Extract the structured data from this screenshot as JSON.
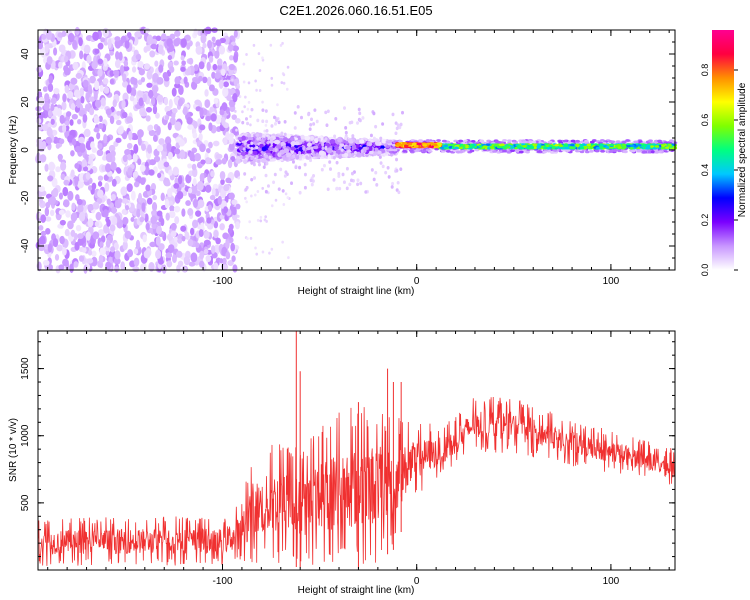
{
  "title": "C2E1.2026.060.16.51.E05",
  "chart_data": [
    {
      "type": "heatmap",
      "name": "spectrogram",
      "xlabel": "Height of straight line (km)",
      "ylabel": "Frequency (Hz)",
      "xlim": [
        -195,
        133
      ],
      "ylim": [
        -50,
        50
      ],
      "x_ticks": [
        {
          "value": -100,
          "label": "-100"
        },
        {
          "value": 0,
          "label": "0"
        },
        {
          "value": 100,
          "label": "100"
        }
      ],
      "y_ticks": [
        {
          "value": -40,
          "label": "-40"
        },
        {
          "value": -20,
          "label": "-20"
        },
        {
          "value": 0,
          "label": "0"
        },
        {
          "value": 20,
          "label": "20"
        },
        {
          "value": 40,
          "label": "40"
        }
      ],
      "colorbar": {
        "label": "Normalized spectral amplitude",
        "range": [
          0,
          0.96
        ],
        "ticks": [
          {
            "value": 0.0,
            "label": "0.0"
          },
          {
            "value": 0.2,
            "label": "0.2"
          },
          {
            "value": 0.4,
            "label": "0.4"
          },
          {
            "value": 0.6,
            "label": "0.6"
          },
          {
            "value": 0.8,
            "label": "0.8"
          }
        ],
        "colors": [
          "#ffffff",
          "#c896ff",
          "#7a00ff",
          "#0000ff",
          "#00c8ff",
          "#00ff80",
          "#80ff00",
          "#ffff00",
          "#ff9000",
          "#ff0040",
          "#ff0090"
        ]
      },
      "regions": [
        {
          "x": [
            -195,
            -92
          ],
          "freq_spread": 50,
          "amplitude": 0.06,
          "description": "broadband noise"
        },
        {
          "x": [
            -92,
            -10
          ],
          "freq_spread": 6,
          "amplitude": 0.3,
          "description": "onset"
        },
        {
          "x": [
            -10,
            12
          ],
          "freq_center": 2,
          "amplitude": 0.95,
          "description": "peak"
        },
        {
          "x": [
            12,
            133
          ],
          "freq_center": 1.5,
          "amplitude": 0.5,
          "description": "steady line"
        }
      ]
    },
    {
      "type": "line",
      "name": "snr",
      "xlabel": "Height of straight line (km)",
      "ylabel": "SNR (10 * v/v)",
      "xlim": [
        -195,
        133
      ],
      "ylim": [
        0,
        1780
      ],
      "color": "#f03030",
      "x_ticks": [
        {
          "value": -100,
          "label": "-100"
        },
        {
          "value": 0,
          "label": "0"
        },
        {
          "value": 100,
          "label": "100"
        }
      ],
      "y_ticks": [
        {
          "value": 500,
          "label": "500"
        },
        {
          "value": 1000,
          "label": "1000"
        },
        {
          "value": 1500,
          "label": "1500"
        }
      ],
      "envelope": [
        {
          "x": -195,
          "low": 30,
          "high": 380
        },
        {
          "x": -150,
          "low": 30,
          "high": 400
        },
        {
          "x": -100,
          "low": 30,
          "high": 400
        },
        {
          "x": -90,
          "low": 40,
          "high": 520
        },
        {
          "x": -85,
          "low": 50,
          "high": 850
        },
        {
          "x": -70,
          "low": 30,
          "high": 1000
        },
        {
          "x": -60,
          "low": 20,
          "high": 900
        },
        {
          "x": -40,
          "low": 10,
          "high": 1200
        },
        {
          "x": -25,
          "low": 10,
          "high": 1250
        },
        {
          "x": -12,
          "low": 150,
          "high": 1150
        },
        {
          "x": 0,
          "low": 550,
          "high": 1100
        },
        {
          "x": 15,
          "low": 700,
          "high": 1100
        },
        {
          "x": 30,
          "low": 880,
          "high": 1300
        },
        {
          "x": 50,
          "low": 870,
          "high": 1280
        },
        {
          "x": 80,
          "low": 770,
          "high": 1120
        },
        {
          "x": 110,
          "low": 700,
          "high": 1000
        },
        {
          "x": 133,
          "low": 600,
          "high": 900
        }
      ],
      "spikes": [
        {
          "x": -62,
          "y": 1780
        },
        {
          "x": -60,
          "y": 1480
        },
        {
          "x": -30,
          "y": 1250
        },
        {
          "x": -15,
          "y": 1500
        },
        {
          "x": -12,
          "y": 1400
        },
        {
          "x": -8,
          "y": 1400
        }
      ]
    }
  ]
}
